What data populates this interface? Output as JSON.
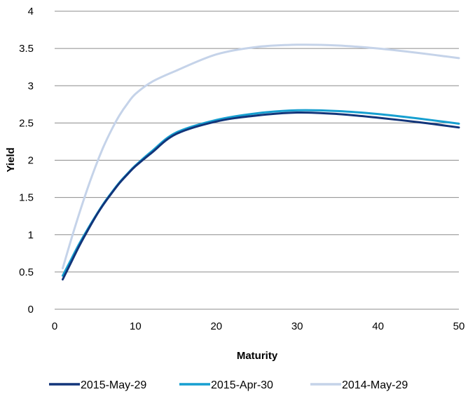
{
  "chart_data": {
    "type": "line",
    "xlabel": "Maturity",
    "ylabel": "Yield",
    "xlim": [
      0,
      50
    ],
    "ylim": [
      0,
      4
    ],
    "x_ticks": [
      "0",
      "10",
      "20",
      "30",
      "40",
      "50"
    ],
    "y_ticks": [
      "0",
      "0.5",
      "1",
      "1.5",
      "2",
      "2.5",
      "3",
      "3.5",
      "4"
    ],
    "grid": "horizontal",
    "legend_position": "bottom",
    "series": [
      {
        "name": "2015-May-29",
        "color": "#12357a",
        "points": [
          [
            1,
            0.4
          ],
          [
            2,
            0.62
          ],
          [
            3,
            0.84
          ],
          [
            4,
            1.04
          ],
          [
            5,
            1.23
          ],
          [
            6,
            1.4
          ],
          [
            7,
            1.55
          ],
          [
            8,
            1.69
          ],
          [
            9,
            1.81
          ],
          [
            10,
            1.92
          ],
          [
            12,
            2.1
          ],
          [
            15,
            2.35
          ],
          [
            20,
            2.52
          ],
          [
            25,
            2.6
          ],
          [
            30,
            2.64
          ],
          [
            35,
            2.62
          ],
          [
            40,
            2.57
          ],
          [
            45,
            2.51
          ],
          [
            50,
            2.44
          ]
        ]
      },
      {
        "name": "2015-Apr-30",
        "color": "#169fd0",
        "points": [
          [
            1,
            0.45
          ],
          [
            2,
            0.66
          ],
          [
            3,
            0.87
          ],
          [
            4,
            1.06
          ],
          [
            5,
            1.24
          ],
          [
            6,
            1.41
          ],
          [
            7,
            1.56
          ],
          [
            8,
            1.7
          ],
          [
            9,
            1.82
          ],
          [
            10,
            1.93
          ],
          [
            12,
            2.12
          ],
          [
            15,
            2.37
          ],
          [
            20,
            2.54
          ],
          [
            25,
            2.63
          ],
          [
            30,
            2.67
          ],
          [
            35,
            2.66
          ],
          [
            40,
            2.62
          ],
          [
            45,
            2.56
          ],
          [
            50,
            2.49
          ]
        ]
      },
      {
        "name": "2014-May-29",
        "color": "#c5d3e9",
        "points": [
          [
            1,
            0.55
          ],
          [
            2,
            0.92
          ],
          [
            3,
            1.27
          ],
          [
            4,
            1.6
          ],
          [
            5,
            1.9
          ],
          [
            6,
            2.17
          ],
          [
            7,
            2.4
          ],
          [
            8,
            2.6
          ],
          [
            9,
            2.76
          ],
          [
            10,
            2.89
          ],
          [
            12,
            3.05
          ],
          [
            15,
            3.2
          ],
          [
            20,
            3.42
          ],
          [
            25,
            3.52
          ],
          [
            30,
            3.55
          ],
          [
            35,
            3.54
          ],
          [
            40,
            3.5
          ],
          [
            45,
            3.44
          ],
          [
            50,
            3.37
          ]
        ]
      }
    ]
  }
}
